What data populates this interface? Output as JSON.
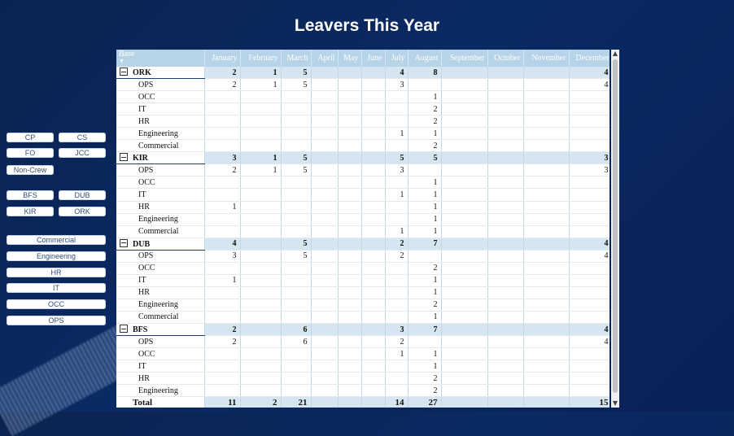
{
  "title": "Leavers This Year",
  "slicers": {
    "crew": [
      "CP",
      "CS",
      "FO",
      "JCC",
      "Non-Crew"
    ],
    "bases": [
      "BFS",
      "DUB",
      "KIR",
      "ORK"
    ],
    "departments": [
      "Commercial",
      "Engineering",
      "HR",
      "IT",
      "OCC",
      "OPS"
    ]
  },
  "table": {
    "base_header": "Base",
    "months": [
      "January",
      "February",
      "March",
      "April",
      "May",
      "June",
      "July",
      "August",
      "September",
      "October",
      "November",
      "December"
    ],
    "groups": [
      {
        "name": "ORK",
        "values": [
          "2",
          "1",
          "5",
          "",
          "",
          "",
          "4",
          "8",
          "",
          "",
          "",
          "4"
        ],
        "rows": [
          {
            "label": "OPS",
            "values": [
              "2",
              "1",
              "5",
              "",
              "",
              "",
              "3",
              "",
              "",
              "",
              "",
              "4"
            ]
          },
          {
            "label": "OCC",
            "values": [
              "",
              "",
              "",
              "",
              "",
              "",
              "",
              "1",
              "",
              "",
              "",
              ""
            ]
          },
          {
            "label": "IT",
            "values": [
              "",
              "",
              "",
              "",
              "",
              "",
              "",
              "2",
              "",
              "",
              "",
              ""
            ]
          },
          {
            "label": "HR",
            "values": [
              "",
              "",
              "",
              "",
              "",
              "",
              "",
              "2",
              "",
              "",
              "",
              ""
            ]
          },
          {
            "label": "Engineering",
            "values": [
              "",
              "",
              "",
              "",
              "",
              "",
              "1",
              "1",
              "",
              "",
              "",
              ""
            ]
          },
          {
            "label": "Commercial",
            "values": [
              "",
              "",
              "",
              "",
              "",
              "",
              "",
              "2",
              "",
              "",
              "",
              ""
            ]
          }
        ]
      },
      {
        "name": "KIR",
        "values": [
          "3",
          "1",
          "5",
          "",
          "",
          "",
          "5",
          "5",
          "",
          "",
          "",
          "3"
        ],
        "rows": [
          {
            "label": "OPS",
            "values": [
              "2",
              "1",
              "5",
              "",
              "",
              "",
              "3",
              "",
              "",
              "",
              "",
              "3"
            ]
          },
          {
            "label": "OCC",
            "values": [
              "",
              "",
              "",
              "",
              "",
              "",
              "",
              "1",
              "",
              "",
              "",
              ""
            ]
          },
          {
            "label": "IT",
            "values": [
              "",
              "",
              "",
              "",
              "",
              "",
              "1",
              "1",
              "",
              "",
              "",
              ""
            ]
          },
          {
            "label": "HR",
            "values": [
              "1",
              "",
              "",
              "",
              "",
              "",
              "",
              "1",
              "",
              "",
              "",
              ""
            ]
          },
          {
            "label": "Engineering",
            "values": [
              "",
              "",
              "",
              "",
              "",
              "",
              "",
              "1",
              "",
              "",
              "",
              ""
            ]
          },
          {
            "label": "Commercial",
            "values": [
              "",
              "",
              "",
              "",
              "",
              "",
              "1",
              "1",
              "",
              "",
              "",
              ""
            ]
          }
        ]
      },
      {
        "name": "DUB",
        "values": [
          "4",
          "",
          "5",
          "",
          "",
          "",
          "2",
          "7",
          "",
          "",
          "",
          "4"
        ],
        "rows": [
          {
            "label": "OPS",
            "values": [
              "3",
              "",
              "5",
              "",
              "",
              "",
              "2",
              "",
              "",
              "",
              "",
              "4"
            ]
          },
          {
            "label": "OCC",
            "values": [
              "",
              "",
              "",
              "",
              "",
              "",
              "",
              "2",
              "",
              "",
              "",
              ""
            ]
          },
          {
            "label": "IT",
            "values": [
              "1",
              "",
              "",
              "",
              "",
              "",
              "",
              "1",
              "",
              "",
              "",
              ""
            ]
          },
          {
            "label": "HR",
            "values": [
              "",
              "",
              "",
              "",
              "",
              "",
              "",
              "1",
              "",
              "",
              "",
              ""
            ]
          },
          {
            "label": "Engineering",
            "values": [
              "",
              "",
              "",
              "",
              "",
              "",
              "",
              "2",
              "",
              "",
              "",
              ""
            ]
          },
          {
            "label": "Commercial",
            "values": [
              "",
              "",
              "",
              "",
              "",
              "",
              "",
              "1",
              "",
              "",
              "",
              ""
            ]
          }
        ]
      },
      {
        "name": "BFS",
        "values": [
          "2",
          "",
          "6",
          "",
          "",
          "",
          "3",
          "7",
          "",
          "",
          "",
          "4"
        ],
        "rows": [
          {
            "label": "OPS",
            "values": [
              "2",
              "",
              "6",
              "",
              "",
              "",
              "2",
              "",
              "",
              "",
              "",
              "4"
            ]
          },
          {
            "label": "OCC",
            "values": [
              "",
              "",
              "",
              "",
              "",
              "",
              "1",
              "1",
              "",
              "",
              "",
              ""
            ]
          },
          {
            "label": "IT",
            "values": [
              "",
              "",
              "",
              "",
              "",
              "",
              "",
              "1",
              "",
              "",
              "",
              ""
            ]
          },
          {
            "label": "HR",
            "values": [
              "",
              "",
              "",
              "",
              "",
              "",
              "",
              "2",
              "",
              "",
              "",
              ""
            ]
          },
          {
            "label": "Engineering",
            "values": [
              "",
              "",
              "",
              "",
              "",
              "",
              "",
              "2",
              "",
              "",
              "",
              ""
            ]
          }
        ]
      }
    ],
    "total": {
      "label": "Total",
      "values": [
        "11",
        "2",
        "21",
        "",
        "",
        "",
        "14",
        "27",
        "",
        "",
        "",
        "15"
      ]
    }
  },
  "scrollbar": {
    "up_icon": "▲",
    "down_icon": "▼"
  }
}
